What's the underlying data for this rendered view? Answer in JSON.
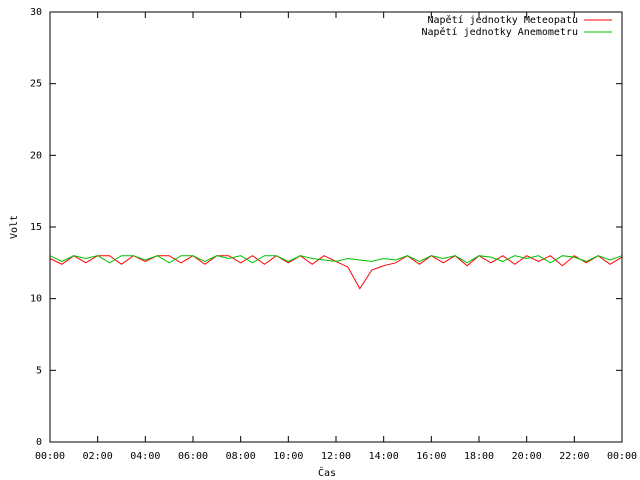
{
  "chart_data": {
    "type": "line",
    "xlabel": "Čas",
    "ylabel": "Volt",
    "x": [
      0,
      0.5,
      1,
      1.5,
      2,
      2.5,
      3,
      3.5,
      4,
      4.5,
      5,
      5.5,
      6,
      6.5,
      7,
      7.5,
      8,
      8.5,
      9,
      9.5,
      10,
      10.5,
      11,
      11.5,
      12,
      12.5,
      13,
      13.5,
      14,
      14.5,
      15,
      15.5,
      16,
      16.5,
      17,
      17.5,
      18,
      18.5,
      19,
      19.5,
      20,
      20.5,
      21,
      21.5,
      22,
      22.5,
      23,
      23.5,
      24
    ],
    "series": [
      {
        "name": "Napětí jednotky Meteopatu",
        "color": "#ff0000",
        "values": [
          12.8,
          12.4,
          13.0,
          12.5,
          13.0,
          13.0,
          12.4,
          13.0,
          12.6,
          13.0,
          13.0,
          12.5,
          13.0,
          12.4,
          13.0,
          13.0,
          12.5,
          13.0,
          12.4,
          13.0,
          12.5,
          13.0,
          12.4,
          13.0,
          12.6,
          12.2,
          10.7,
          12.0,
          12.3,
          12.5,
          13.0,
          12.4,
          13.0,
          12.5,
          13.0,
          12.3,
          13.0,
          12.5,
          13.0,
          12.4,
          13.0,
          12.6,
          13.0,
          12.3,
          13.0,
          12.5,
          13.0,
          12.4,
          12.9
        ]
      },
      {
        "name": "Napětí jednotky Anemometru",
        "color": "#00c000",
        "values": [
          13.0,
          12.6,
          13.0,
          12.8,
          13.0,
          12.5,
          13.0,
          13.0,
          12.7,
          13.0,
          12.5,
          13.0,
          13.0,
          12.6,
          13.0,
          12.8,
          13.0,
          12.5,
          13.0,
          13.0,
          12.6,
          13.0,
          12.8,
          12.7,
          12.6,
          12.8,
          12.7,
          12.6,
          12.8,
          12.7,
          13.0,
          12.6,
          13.0,
          12.8,
          13.0,
          12.5,
          13.0,
          12.9,
          12.6,
          13.0,
          12.8,
          13.0,
          12.5,
          13.0,
          12.9,
          12.6,
          13.0,
          12.7,
          13.0
        ]
      }
    ],
    "xlim": [
      0,
      24
    ],
    "xticks": [
      {
        "value": 0,
        "label": "00:00"
      },
      {
        "value": 2,
        "label": "02:00"
      },
      {
        "value": 4,
        "label": "04:00"
      },
      {
        "value": 6,
        "label": "06:00"
      },
      {
        "value": 8,
        "label": "08:00"
      },
      {
        "value": 10,
        "label": "10:00"
      },
      {
        "value": 12,
        "label": "12:00"
      },
      {
        "value": 14,
        "label": "14:00"
      },
      {
        "value": 16,
        "label": "16:00"
      },
      {
        "value": 18,
        "label": "18:00"
      },
      {
        "value": 20,
        "label": "20:00"
      },
      {
        "value": 22,
        "label": "22:00"
      },
      {
        "value": 24,
        "label": "00:00"
      }
    ],
    "ylim": [
      0,
      30
    ],
    "yticks": [
      0,
      5,
      10,
      15,
      20,
      25,
      30
    ],
    "legend": "upper right"
  }
}
